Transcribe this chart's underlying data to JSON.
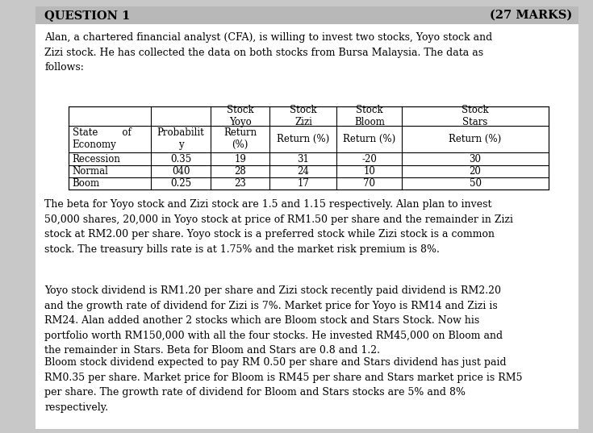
{
  "title_left": "QUESTION 1",
  "title_right": "(27 MARKS)",
  "bg_color": "#c8c8c8",
  "content_bg": "#ffffff",
  "paragraph1": "Alan, a chartered financial analyst (CFA), is willing to invest two stocks, Yoyo stock and\nZizi stock. He has collected the data on both stocks from Bursa Malaysia. The data as\nfollows:",
  "table_col_starts": [
    0.115,
    0.255,
    0.355,
    0.455,
    0.568,
    0.678,
    0.925
  ],
  "table_header1": [
    "Stock\nYoyo",
    "Stock\nZizi",
    "Stock\nBloom",
    "Stock\nStars"
  ],
  "table_header2_col0": "State        of\nEconomy",
  "table_header2_col1": "Probabilit\ny",
  "table_header2_col2": "Return\n(%)",
  "table_header2_col345": "Return (%)",
  "table_data": [
    [
      "Recession",
      "0.35",
      "19",
      "31",
      "-20",
      "30"
    ],
    [
      "Normal",
      "040",
      "28",
      "24",
      "10",
      "20"
    ],
    [
      "Boom",
      "0.25",
      "23",
      "17",
      "70",
      "50"
    ]
  ],
  "paragraph2": "The beta for Yoyo stock and Zizi stock are 1.5 and 1.15 respectively. Alan plan to invest\n50,000 shares, 20,000 in Yoyo stock at price of RM1.50 per share and the remainder in Zizi\nstock at RM2.00 per share. Yoyo stock is a preferred stock while Zizi stock is a common\nstock. The treasury bills rate is at 1.75% and the market risk premium is 8%.",
  "paragraph3": "Yoyo stock dividend is RM1.20 per share and Zizi stock recently paid dividend is RM2.20\nand the growth rate of dividend for Zizi is 7%. Market price for Yoyo is RM14 and Zizi is\nRM24. Alan added another 2 stocks which are Bloom stock and Stars Stock. Now his\nportfolio worth RM150,000 with all the four stocks. He invested RM45,000 on Bloom and\nthe remainder in Stars. Beta for Bloom and Stars are 0.8 and 1.2.",
  "paragraph4": "Bloom stock dividend expected to pay RM 0.50 per share and Stars dividend has just paid\nRM0.35 per share. Market price for Bloom is RM45 per share and Stars market price is RM5\nper share. The growth rate of dividend for Bloom and Stars stocks are 5% and 8%\nrespectively.",
  "serif_font": "DejaVu Serif",
  "title_fontsize": 10.5,
  "body_fontsize": 9.0,
  "table_fontsize": 8.5
}
